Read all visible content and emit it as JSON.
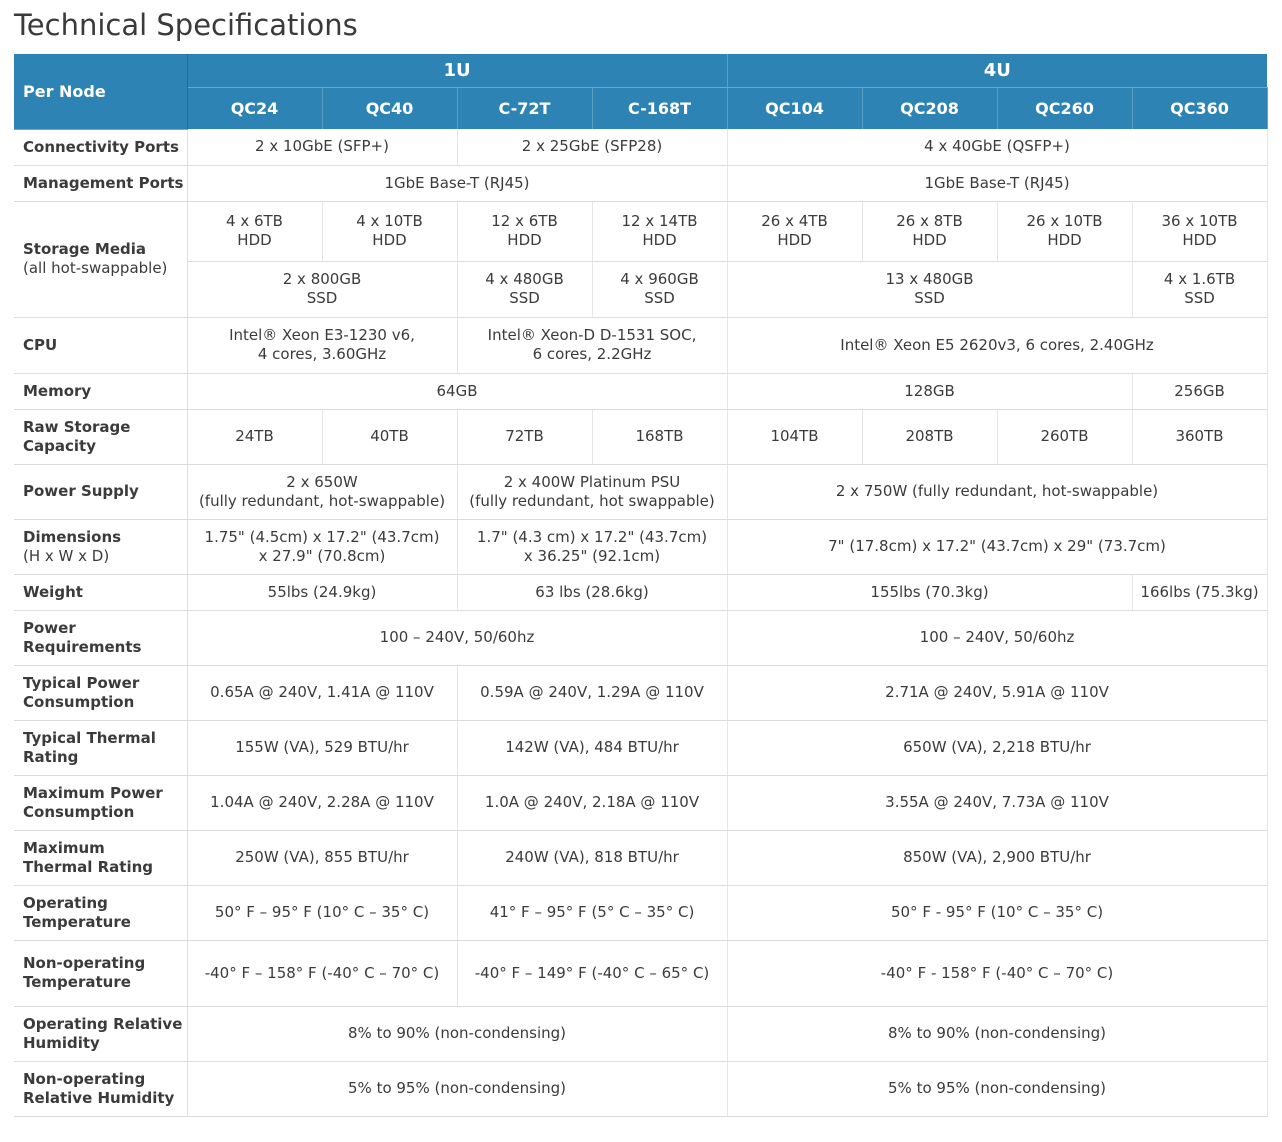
{
  "title": "Technical Specifications",
  "header": {
    "per_node": "Per Node",
    "group_1u": "1U",
    "group_4u": "4U",
    "models": [
      "QC24",
      "QC40",
      "C-72T",
      "C-168T",
      "QC104",
      "QC208",
      "QC260",
      "QC360"
    ]
  },
  "rows": {
    "connectivity": {
      "label": "Connectivity Ports",
      "v1": "2 x 10GbE (SFP+)",
      "v2": "2 x 25GbE (SFP28)",
      "v3": "4 x 40GbE (QSFP+)"
    },
    "management": {
      "label": "Management Ports",
      "v1": "1GbE Base-T (RJ45)",
      "v2": "1GbE Base-T (RJ45)"
    },
    "storage": {
      "label": "Storage Media",
      "sublabel": "(all hot-swappable)",
      "hdd": [
        [
          "4 x 6TB",
          "HDD"
        ],
        [
          "4 x 10TB",
          "HDD"
        ],
        [
          "12 x 6TB",
          "HDD"
        ],
        [
          "12 x 14TB",
          "HDD"
        ],
        [
          "26 x 4TB",
          "HDD"
        ],
        [
          "26 x 8TB",
          "HDD"
        ],
        [
          "26 x 10TB",
          "HDD"
        ],
        [
          "36 x 10TB",
          "HDD"
        ]
      ],
      "ssd": [
        [
          "2 x 800GB",
          "SSD"
        ],
        [
          "4 x 480GB",
          "SSD"
        ],
        [
          "4 x 960GB",
          "SSD"
        ],
        [
          "13 x 480GB",
          "SSD"
        ],
        [
          "4 x 1.6TB",
          "SSD"
        ]
      ]
    },
    "cpu": {
      "label": "CPU",
      "v1a": "Intel® Xeon E3-1230 v6,",
      "v1b": "4 cores, 3.60GHz",
      "v2a": "Intel® Xeon-D D-1531 SOC,",
      "v2b": "6 cores, 2.2GHz",
      "v3": "Intel® Xeon E5 2620v3, 6 cores, 2.40GHz"
    },
    "memory": {
      "label": "Memory",
      "v1": "64GB",
      "v2": "128GB",
      "v3": "256GB"
    },
    "raw": {
      "label_a": "Raw Storage",
      "label_b": "Capacity",
      "values": [
        "24TB",
        "40TB",
        "72TB",
        "168TB",
        "104TB",
        "208TB",
        "260TB",
        "360TB"
      ]
    },
    "power_supply": {
      "label": "Power Supply",
      "v1a": "2 x 650W",
      "v1b": "(fully redundant, hot-swappable)",
      "v2a": "2 x 400W Platinum PSU",
      "v2b": "(fully redundant, hot swappable)",
      "v3": "2 x 750W (fully redundant, hot-swappable)"
    },
    "dimensions": {
      "label": "Dimensions",
      "sublabel": "(H x W x D)",
      "v1a": "1.75\" (4.5cm) x 17.2\" (43.7cm)",
      "v1b": "x 27.9\" (70.8cm)",
      "v2a": "1.7\" (4.3 cm) x 17.2\" (43.7cm)",
      "v2b": "x 36.25\" (92.1cm)",
      "v3": "7\" (17.8cm) x 17.2\" (43.7cm) x 29\" (73.7cm)"
    },
    "weight": {
      "label": "Weight",
      "v1": "55lbs (24.9kg)",
      "v2": "63 lbs (28.6kg)",
      "v3": "155lbs (70.3kg)",
      "v4": "166lbs (75.3kg)"
    },
    "power_req": {
      "label_a": "Power",
      "label_b": "Requirements",
      "v1": "100 – 240V, 50/60hz",
      "v2": "100 – 240V, 50/60hz"
    },
    "typ_power": {
      "label_a": "Typical Power",
      "label_b": "Consumption",
      "v1": "0.65A @ 240V, 1.41A @ 110V",
      "v2": "0.59A @ 240V, 1.29A @ 110V",
      "v3": "2.71A @ 240V, 5.91A @ 110V"
    },
    "typ_thermal": {
      "label_a": "Typical Thermal",
      "label_b": "Rating",
      "v1": "155W (VA), 529 BTU/hr",
      "v2": "142W (VA), 484 BTU/hr",
      "v3": "650W (VA), 2,218 BTU/hr"
    },
    "max_power": {
      "label_a": "Maximum Power",
      "label_b": "Consumption",
      "v1": "1.04A @ 240V, 2.28A @ 110V",
      "v2": "1.0A @ 240V, 2.18A @ 110V",
      "v3": "3.55A @ 240V, 7.73A @ 110V"
    },
    "max_thermal": {
      "label_a": "Maximum",
      "label_b": "Thermal Rating",
      "v1": "250W (VA), 855 BTU/hr",
      "v2": "240W (VA), 818 BTU/hr",
      "v3": "850W (VA), 2,900 BTU/hr"
    },
    "op_temp": {
      "label_a": "Operating",
      "label_b": "Temperature",
      "v1": "50° F – 95° F (10° C – 35° C)",
      "v2": "41° F – 95° F (5° C – 35° C)",
      "v3": "50° F - 95° F (10° C – 35° C)"
    },
    "nonop_temp": {
      "label_a": "Non-operating",
      "label_b": "Temperature",
      "v1": "-40° F – 158° F (-40° C – 70° C)",
      "v2": "-40° F – 149° F (-40° C – 65° C)",
      "v3": "-40° F - 158° F (-40° C – 70° C)"
    },
    "op_hum": {
      "label_a": "Operating Relative",
      "label_b": "Humidity",
      "v1": "8% to 90% (non-condensing)",
      "v2": "8% to 90% (non-condensing)"
    },
    "nonop_hum": {
      "label_a": "Non-operating",
      "label_b": "Relative Humidity",
      "v1": "5% to 95% (non-condensing)",
      "v2": "5% to 95% (non-condensing)"
    }
  }
}
